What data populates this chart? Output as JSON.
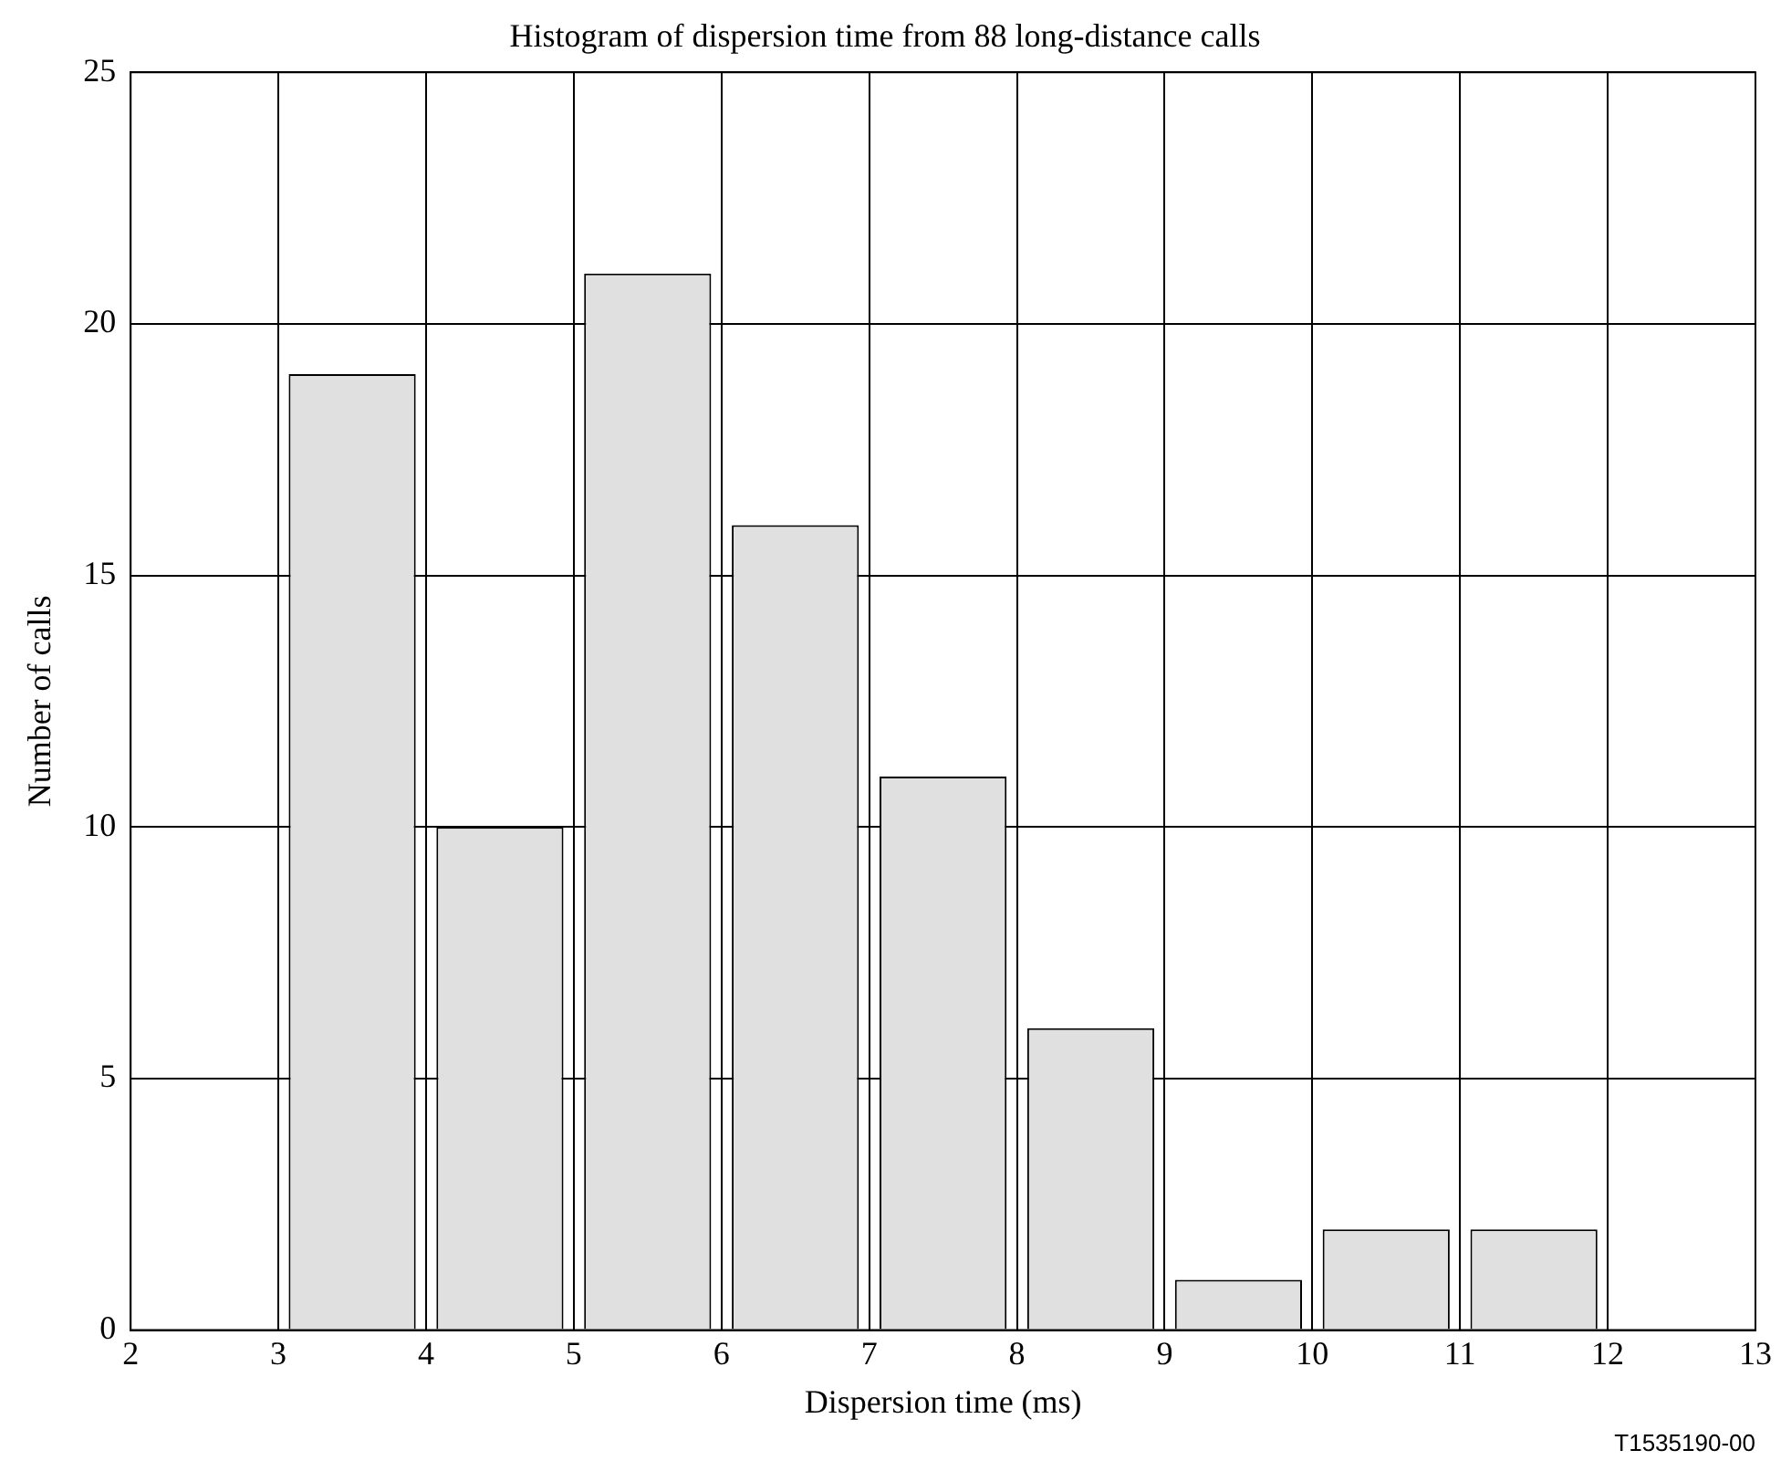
{
  "chart_data": {
    "type": "histogram",
    "title": "Histogram of dispersion time from 88 long-distance calls",
    "xlabel": "Dispersion time (ms)",
    "ylabel": "Number of calls",
    "bins": [
      3,
      4,
      5,
      6,
      7,
      8,
      9,
      10,
      11,
      12
    ],
    "values": [
      19,
      10,
      21,
      16,
      11,
      6,
      1,
      2,
      2
    ],
    "color": "#e0e0e0",
    "xlim": [
      2,
      13
    ],
    "xticks": [
      2,
      3,
      4,
      5,
      6,
      7,
      8,
      9,
      10,
      11,
      12,
      13
    ],
    "ylim": [
      0,
      25
    ],
    "yticks": [
      0,
      5,
      10,
      15,
      20,
      25
    ],
    "grid": true,
    "legend": false,
    "annotations": [
      "T1535190-00"
    ]
  }
}
